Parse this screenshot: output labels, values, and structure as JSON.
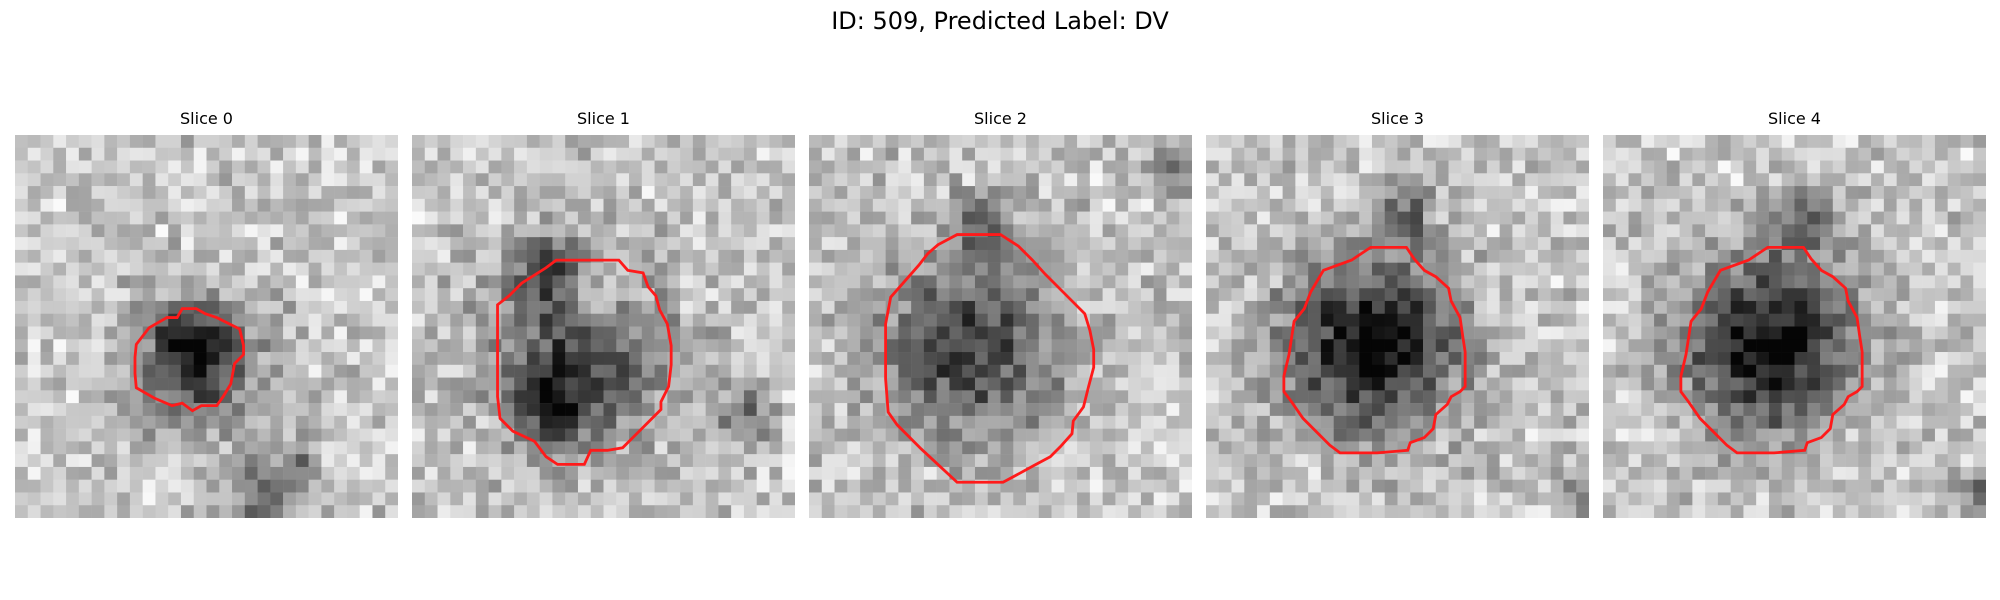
{
  "figure": {
    "title": "ID: 509, Predicted Label: DV",
    "contour_color": "#ff1a1a"
  },
  "panels": [
    {
      "title": "Slice 0",
      "contour": [
        [
          12.7,
          14.3
        ],
        [
          13.1,
          13.6
        ],
        [
          14.2,
          13.6
        ],
        [
          14.9,
          14.0
        ],
        [
          15.8,
          14.3
        ],
        [
          17.6,
          15.2
        ],
        [
          17.9,
          16.5
        ],
        [
          17.9,
          17.2
        ],
        [
          17.2,
          17.9
        ],
        [
          16.9,
          19.5
        ],
        [
          16.3,
          20.5
        ],
        [
          15.8,
          21.2
        ],
        [
          14.6,
          21.2
        ],
        [
          13.9,
          21.6
        ],
        [
          13.1,
          21.0
        ],
        [
          12.3,
          21.2
        ],
        [
          10.9,
          20.6
        ],
        [
          9.5,
          19.8
        ],
        [
          9.4,
          18.7
        ],
        [
          9.4,
          17.4
        ],
        [
          9.5,
          16.4
        ],
        [
          10.5,
          15.1
        ],
        [
          11.9,
          14.3
        ]
      ],
      "dark_blobs": [
        [
          14.5,
          17.8,
          5.5,
          0.55
        ],
        [
          13.8,
          16.0,
          3.0,
          0.35
        ],
        [
          19.0,
          28.0,
          3.5,
          0.35
        ],
        [
          22.5,
          25.0,
          2.0,
          0.25
        ]
      ]
    },
    {
      "title": "Slice 1",
      "contour": [
        [
          7.6,
          12.6
        ],
        [
          8.6,
          11.6
        ],
        [
          10.5,
          10.4
        ],
        [
          11.3,
          9.8
        ],
        [
          16.2,
          9.8
        ],
        [
          16.9,
          10.6
        ],
        [
          18.1,
          10.8
        ],
        [
          18.5,
          11.9
        ],
        [
          19.1,
          12.6
        ],
        [
          19.4,
          13.7
        ],
        [
          20.0,
          14.8
        ],
        [
          20.3,
          16.5
        ],
        [
          20.3,
          18.0
        ],
        [
          20.1,
          19.7
        ],
        [
          19.5,
          20.9
        ],
        [
          19.5,
          21.5
        ],
        [
          18.6,
          22.4
        ],
        [
          16.5,
          24.5
        ],
        [
          15.3,
          24.7
        ],
        [
          14.0,
          24.7
        ],
        [
          13.5,
          25.8
        ],
        [
          11.4,
          25.8
        ],
        [
          10.5,
          25.2
        ],
        [
          9.6,
          24.0
        ],
        [
          7.9,
          23.2
        ],
        [
          6.9,
          22.2
        ],
        [
          6.7,
          20.5
        ],
        [
          6.7,
          13.3
        ]
      ],
      "dark_blobs": [
        [
          13.0,
          17.5,
          7.5,
          0.55
        ],
        [
          10.5,
          10.5,
          3.0,
          0.35
        ],
        [
          11.0,
          21.5,
          3.0,
          0.4
        ],
        [
          14.5,
          13.0,
          2.5,
          -0.35
        ],
        [
          26.0,
          22.0,
          2.5,
          0.35
        ]
      ]
    },
    {
      "title": "Slice 2",
      "contour": [
        [
          9.3,
          9.3
        ],
        [
          10.1,
          8.6
        ],
        [
          11.6,
          7.8
        ],
        [
          15.0,
          7.8
        ],
        [
          16.4,
          8.7
        ],
        [
          17.5,
          9.8
        ],
        [
          18.5,
          10.9
        ],
        [
          20.5,
          12.9
        ],
        [
          21.6,
          14.0
        ],
        [
          22.0,
          15.3
        ],
        [
          22.3,
          16.8
        ],
        [
          22.3,
          18.2
        ],
        [
          21.9,
          19.7
        ],
        [
          21.5,
          21.3
        ],
        [
          20.7,
          22.4
        ],
        [
          20.6,
          23.4
        ],
        [
          19.7,
          24.4
        ],
        [
          18.9,
          25.2
        ],
        [
          17.6,
          25.9
        ],
        [
          16.5,
          26.5
        ],
        [
          15.2,
          27.2
        ],
        [
          11.6,
          27.2
        ],
        [
          8.8,
          24.6
        ],
        [
          6.9,
          22.7
        ],
        [
          6.2,
          21.7
        ],
        [
          6.0,
          19.1
        ],
        [
          6.0,
          14.8
        ],
        [
          6.4,
          12.7
        ],
        [
          8.6,
          10.2
        ]
      ],
      "dark_blobs": [
        [
          12.5,
          16.5,
          8.0,
          0.55
        ],
        [
          13.5,
          7.0,
          2.5,
          0.35
        ],
        [
          29.0,
          2.5,
          2.5,
          0.35
        ]
      ]
    },
    {
      "title": "Slice 3",
      "contour": [
        [
          9.2,
          10.6
        ],
        [
          11.4,
          9.8
        ],
        [
          12.9,
          8.8
        ],
        [
          15.7,
          8.8
        ],
        [
          16.3,
          9.7
        ],
        [
          17.1,
          10.6
        ],
        [
          18.0,
          11.1
        ],
        [
          19.0,
          12.0
        ],
        [
          19.2,
          13.0
        ],
        [
          19.9,
          14.3
        ],
        [
          20.1,
          15.7
        ],
        [
          20.3,
          17.0
        ],
        [
          20.3,
          19.7
        ],
        [
          19.9,
          20.1
        ],
        [
          19.2,
          20.5
        ],
        [
          18.9,
          21.1
        ],
        [
          18.0,
          21.9
        ],
        [
          17.8,
          23.0
        ],
        [
          17.1,
          23.7
        ],
        [
          16.0,
          24.1
        ],
        [
          15.8,
          24.7
        ],
        [
          13.4,
          24.9
        ],
        [
          10.5,
          24.9
        ],
        [
          9.7,
          24.3
        ],
        [
          7.6,
          22.2
        ],
        [
          6.7,
          20.9
        ],
        [
          6.1,
          20.1
        ],
        [
          6.1,
          18.9
        ],
        [
          6.5,
          17.2
        ],
        [
          6.9,
          14.6
        ],
        [
          7.7,
          13.6
        ],
        [
          8.2,
          12.3
        ]
      ],
      "dark_blobs": [
        [
          13.0,
          16.5,
          7.5,
          0.75
        ],
        [
          15.5,
          6.5,
          2.5,
          0.4
        ],
        [
          29.0,
          28.0,
          2.0,
          0.3
        ]
      ]
    },
    {
      "title": "Slice 4",
      "contour": [
        [
          9.2,
          10.6
        ],
        [
          11.4,
          9.8
        ],
        [
          12.9,
          8.8
        ],
        [
          15.7,
          8.8
        ],
        [
          16.3,
          9.7
        ],
        [
          17.1,
          10.6
        ],
        [
          18.0,
          11.1
        ],
        [
          19.0,
          12.0
        ],
        [
          19.2,
          13.0
        ],
        [
          19.9,
          14.3
        ],
        [
          20.1,
          15.7
        ],
        [
          20.3,
          17.0
        ],
        [
          20.3,
          19.7
        ],
        [
          19.9,
          20.1
        ],
        [
          19.2,
          20.5
        ],
        [
          18.9,
          21.1
        ],
        [
          18.0,
          21.9
        ],
        [
          17.8,
          23.0
        ],
        [
          17.1,
          23.7
        ],
        [
          16.0,
          24.1
        ],
        [
          15.8,
          24.7
        ],
        [
          13.4,
          24.9
        ],
        [
          10.5,
          24.9
        ],
        [
          9.7,
          24.3
        ],
        [
          7.6,
          22.2
        ],
        [
          6.7,
          20.9
        ],
        [
          6.1,
          20.1
        ],
        [
          6.1,
          18.9
        ],
        [
          6.5,
          17.2
        ],
        [
          6.9,
          14.6
        ],
        [
          7.7,
          13.6
        ],
        [
          8.2,
          12.3
        ]
      ],
      "dark_blobs": [
        [
          13.0,
          16.5,
          7.5,
          0.75
        ],
        [
          15.5,
          6.5,
          2.5,
          0.4
        ],
        [
          29.0,
          28.0,
          2.0,
          0.3
        ]
      ]
    }
  ]
}
